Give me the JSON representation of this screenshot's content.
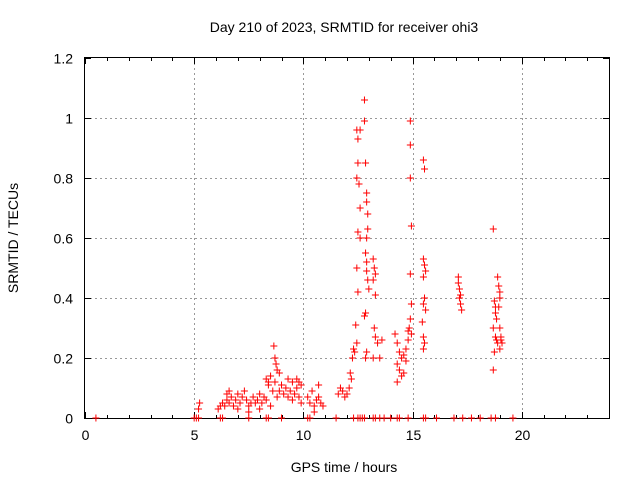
{
  "chart_data": {
    "type": "scatter",
    "title": "Day 210 of 2023, SRMTID for receiver ohi3",
    "xlabel": "GPS time / hours",
    "ylabel": "SRMTID / TECUs",
    "xlim": [
      0,
      24
    ],
    "ylim": [
      0,
      1.2
    ],
    "xticks": [
      0,
      5,
      10,
      15,
      20
    ],
    "yticks": [
      0,
      0.2,
      0.4,
      0.6,
      0.8,
      1,
      1.2
    ],
    "xtick_labels": [
      "0",
      "5",
      "10",
      "15",
      "20"
    ],
    "ytick_labels": [
      "0",
      "0.2",
      "0.4",
      "0.6",
      "0.8",
      "1",
      "1.2"
    ],
    "grid": true,
    "marker": "+",
    "color": "#ff0000",
    "series": [
      {
        "name": "SRMTID",
        "points": [
          [
            0.5,
            0
          ],
          [
            5.0,
            0
          ],
          [
            5.1,
            0
          ],
          [
            5.2,
            0
          ],
          [
            6.2,
            0
          ],
          [
            6.3,
            0
          ],
          [
            7.5,
            0
          ],
          [
            8.3,
            0
          ],
          [
            8.4,
            0
          ],
          [
            9.0,
            0
          ],
          [
            10.2,
            0
          ],
          [
            10.3,
            0
          ],
          [
            11.5,
            0
          ],
          [
            12.3,
            0
          ],
          [
            12.5,
            0
          ],
          [
            12.6,
            0
          ],
          [
            12.7,
            0
          ],
          [
            12.8,
            0
          ],
          [
            13.2,
            0
          ],
          [
            13.3,
            0
          ],
          [
            13.5,
            0
          ],
          [
            13.7,
            0
          ],
          [
            14.0,
            0
          ],
          [
            14.3,
            0
          ],
          [
            14.4,
            0
          ],
          [
            14.8,
            0
          ],
          [
            15.5,
            0
          ],
          [
            15.6,
            0
          ],
          [
            16.1,
            0
          ],
          [
            16.9,
            0
          ],
          [
            17.3,
            0
          ],
          [
            17.7,
            0
          ],
          [
            18.1,
            0
          ],
          [
            18.6,
            0
          ],
          [
            18.8,
            0
          ],
          [
            19.6,
            0
          ],
          [
            5.25,
            0.05
          ],
          [
            5.2,
            0.03
          ],
          [
            6.1,
            0.03
          ],
          [
            6.2,
            0.04
          ],
          [
            6.3,
            0.05
          ],
          [
            6.4,
            0.04
          ],
          [
            6.5,
            0.06
          ],
          [
            6.5,
            0.08
          ],
          [
            6.6,
            0.05
          ],
          [
            6.7,
            0.07
          ],
          [
            6.8,
            0.04
          ],
          [
            6.9,
            0.06
          ],
          [
            7.0,
            0.08
          ],
          [
            7.1,
            0.05
          ],
          [
            7.2,
            0.07
          ],
          [
            7.3,
            0.09
          ],
          [
            7.4,
            0.06
          ],
          [
            7.5,
            0.04
          ],
          [
            7.6,
            0.05
          ],
          [
            7.7,
            0.07
          ],
          [
            7.8,
            0.05
          ],
          [
            7.9,
            0.06
          ],
          [
            8.0,
            0.08
          ],
          [
            8.1,
            0.05
          ],
          [
            8.2,
            0.07
          ],
          [
            8.3,
            0.06
          ],
          [
            8.4,
            0.11
          ],
          [
            8.5,
            0.14
          ],
          [
            8.6,
            0.09
          ],
          [
            8.7,
            0.12
          ],
          [
            8.8,
            0.07
          ],
          [
            8.9,
            0.09
          ],
          [
            9.0,
            0.11
          ],
          [
            9.1,
            0.08
          ],
          [
            9.2,
            0.1
          ],
          [
            9.3,
            0.07
          ],
          [
            9.4,
            0.09
          ],
          [
            9.5,
            0.06
          ],
          [
            9.6,
            0.08
          ],
          [
            9.7,
            0.1
          ],
          [
            9.8,
            0.07
          ],
          [
            9.9,
            0.05
          ],
          [
            6.6,
            0.09
          ],
          [
            7.0,
            0.03
          ],
          [
            7.5,
            0.02
          ],
          [
            8.0,
            0.03
          ],
          [
            8.5,
            0.04
          ],
          [
            8.65,
            0.24
          ],
          [
            8.7,
            0.2
          ],
          [
            8.75,
            0.18
          ],
          [
            8.8,
            0.16
          ],
          [
            8.9,
            0.15
          ],
          [
            9.3,
            0.13
          ],
          [
            9.5,
            0.12
          ],
          [
            9.7,
            0.13
          ],
          [
            9.8,
            0.12
          ],
          [
            9.9,
            0.11
          ],
          [
            8.3,
            0.13
          ],
          [
            8.4,
            0.12
          ],
          [
            10.2,
            0.07
          ],
          [
            10.3,
            0.05
          ],
          [
            10.5,
            0.04
          ],
          [
            10.6,
            0.06
          ],
          [
            10.7,
            0.07
          ],
          [
            10.8,
            0.05
          ],
          [
            10.9,
            0.04
          ],
          [
            10.4,
            0.09
          ],
          [
            10.7,
            0.11
          ],
          [
            10.5,
            0.02
          ],
          [
            11.6,
            0.08
          ],
          [
            11.7,
            0.1
          ],
          [
            11.8,
            0.09
          ],
          [
            11.9,
            0.07
          ],
          [
            12.0,
            0.08
          ],
          [
            12.1,
            0.1
          ],
          [
            12.15,
            0.15
          ],
          [
            12.2,
            0.13
          ],
          [
            12.25,
            0.2
          ],
          [
            12.3,
            0.23
          ],
          [
            12.35,
            0.22
          ],
          [
            12.4,
            0.31
          ],
          [
            12.45,
            0.25
          ],
          [
            12.5,
            0.42
          ],
          [
            12.45,
            0.5
          ],
          [
            12.5,
            0.62
          ],
          [
            12.45,
            0.8
          ],
          [
            12.5,
            0.85
          ],
          [
            12.55,
            0.78
          ],
          [
            12.45,
            0.96
          ],
          [
            12.5,
            0.93
          ],
          [
            12.6,
            0.96
          ],
          [
            12.6,
            0.7
          ],
          [
            12.6,
            0.6
          ],
          [
            12.8,
            1.06
          ],
          [
            12.8,
            0.99
          ],
          [
            12.85,
            0.85
          ],
          [
            12.9,
            0.75
          ],
          [
            12.9,
            0.72
          ],
          [
            12.95,
            0.68
          ],
          [
            12.95,
            0.63
          ],
          [
            12.9,
            0.6
          ],
          [
            12.85,
            0.55
          ],
          [
            12.9,
            0.52
          ],
          [
            12.9,
            0.49
          ],
          [
            12.95,
            0.46
          ],
          [
            13.0,
            0.43
          ],
          [
            12.85,
            0.35
          ],
          [
            12.8,
            0.34
          ],
          [
            12.9,
            0.22
          ],
          [
            12.85,
            0.2
          ],
          [
            13.2,
            0.53
          ],
          [
            13.25,
            0.5
          ],
          [
            13.3,
            0.48
          ],
          [
            13.2,
            0.46
          ],
          [
            13.3,
            0.41
          ],
          [
            13.25,
            0.3
          ],
          [
            13.3,
            0.27
          ],
          [
            13.4,
            0.25
          ],
          [
            13.2,
            0.2
          ],
          [
            13.5,
            0.2
          ],
          [
            13.6,
            0.26
          ],
          [
            14.2,
            0.28
          ],
          [
            14.3,
            0.25
          ],
          [
            14.4,
            0.22
          ],
          [
            14.5,
            0.2
          ],
          [
            14.3,
            0.18
          ],
          [
            14.4,
            0.16
          ],
          [
            14.5,
            0.14
          ],
          [
            14.3,
            0.12
          ],
          [
            14.6,
            0.15
          ],
          [
            14.7,
            0.19
          ],
          [
            14.7,
            0.23
          ],
          [
            14.8,
            0.26
          ],
          [
            14.8,
            0.29
          ],
          [
            14.6,
            0.21
          ],
          [
            14.9,
            0.99
          ],
          [
            14.9,
            0.91
          ],
          [
            14.9,
            0.8
          ],
          [
            14.95,
            0.64
          ],
          [
            14.9,
            0.48
          ],
          [
            14.95,
            0.38
          ],
          [
            14.9,
            0.33
          ],
          [
            14.85,
            0.3
          ],
          [
            14.95,
            0.28
          ],
          [
            15.5,
            0.86
          ],
          [
            15.55,
            0.83
          ],
          [
            15.5,
            0.53
          ],
          [
            15.55,
            0.51
          ],
          [
            15.6,
            0.49
          ],
          [
            15.5,
            0.47
          ],
          [
            15.55,
            0.4
          ],
          [
            15.5,
            0.38
          ],
          [
            15.6,
            0.36
          ],
          [
            15.45,
            0.32
          ],
          [
            15.5,
            0.27
          ],
          [
            15.55,
            0.25
          ],
          [
            15.5,
            0.23
          ],
          [
            17.1,
            0.47
          ],
          [
            17.1,
            0.45
          ],
          [
            17.15,
            0.43
          ],
          [
            17.2,
            0.41
          ],
          [
            17.15,
            0.4
          ],
          [
            17.2,
            0.38
          ],
          [
            17.25,
            0.36
          ],
          [
            18.7,
            0.63
          ],
          [
            18.75,
            0.39
          ],
          [
            18.8,
            0.37
          ],
          [
            18.8,
            0.35
          ],
          [
            18.85,
            0.33
          ],
          [
            18.7,
            0.3
          ],
          [
            18.8,
            0.27
          ],
          [
            18.85,
            0.26
          ],
          [
            18.9,
            0.25
          ],
          [
            18.75,
            0.22
          ],
          [
            18.7,
            0.16
          ],
          [
            18.9,
            0.47
          ],
          [
            18.95,
            0.44
          ],
          [
            19.0,
            0.42
          ],
          [
            19.0,
            0.4
          ],
          [
            18.95,
            0.37
          ],
          [
            19.0,
            0.3
          ],
          [
            19.05,
            0.27
          ],
          [
            19.1,
            0.25
          ],
          [
            19.0,
            0.23
          ],
          [
            19.05,
            0.26
          ]
        ]
      }
    ]
  }
}
